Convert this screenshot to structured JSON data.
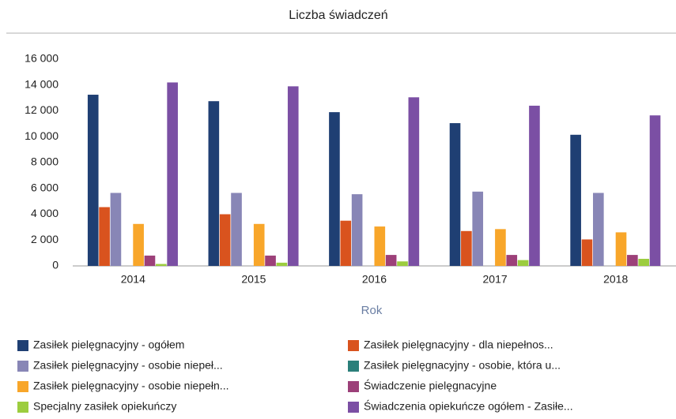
{
  "chart_data": {
    "type": "bar",
    "title": "Liczba świadczeń",
    "x_label": "Rok",
    "categories": [
      "2014",
      "2015",
      "2016",
      "2017",
      "2018"
    ],
    "series": [
      {
        "name": "Zasiłek pielęgnacyjny - ogółem",
        "color": "#1f3f73",
        "values": [
          13250,
          12750,
          11900,
          11050,
          10150
        ]
      },
      {
        "name": "Zasiłek pielęgnacyjny - dla niepełnos...",
        "color": "#d9531e",
        "values": [
          4550,
          4000,
          3500,
          2700,
          2050
        ]
      },
      {
        "name": "Zasiłek pielęgnacyjny - osobie niepeł...",
        "color": "#8886b6",
        "values": [
          5650,
          5650,
          5550,
          5750,
          5650
        ]
      },
      {
        "name": "Zasiłek pielęgnacyjny - osobie, która u...",
        "color": "#2b7f7a",
        "values": [
          0,
          0,
          0,
          0,
          0
        ]
      },
      {
        "name": "Zasiłek pielęgnacyjny -  osobie niepełn...",
        "color": "#f8a62a",
        "values": [
          3250,
          3250,
          3050,
          2850,
          2600
        ]
      },
      {
        "name": "Świadczenie pielęgnacyjne",
        "color": "#9c4079",
        "values": [
          800,
          800,
          850,
          850,
          850
        ]
      },
      {
        "name": "Specjalny zasiłek opiekuńczy",
        "color": "#9ccd3f",
        "values": [
          150,
          250,
          350,
          450,
          550
        ]
      },
      {
        "name": "Świadczenia opiekuńcze ogółem - Zasiłe...",
        "color": "#7b4fa4",
        "values": [
          14200,
          13900,
          13050,
          12400,
          11650
        ]
      }
    ],
    "ylim": [
      0,
      16000
    ],
    "yticks": [
      0,
      {
        "value": 2000,
        "label": "2 000"
      },
      {
        "value": 4000,
        "label": "4 000"
      },
      {
        "value": 6000,
        "label": "6 000"
      },
      {
        "value": 8000,
        "label": "8 000"
      },
      {
        "value": 10000,
        "label": "10 000"
      },
      {
        "value": 12000,
        "label": "12 000"
      },
      {
        "value": 14000,
        "label": "14 000"
      },
      {
        "value": 16000,
        "label": "16 000"
      }
    ],
    "grid": false
  }
}
